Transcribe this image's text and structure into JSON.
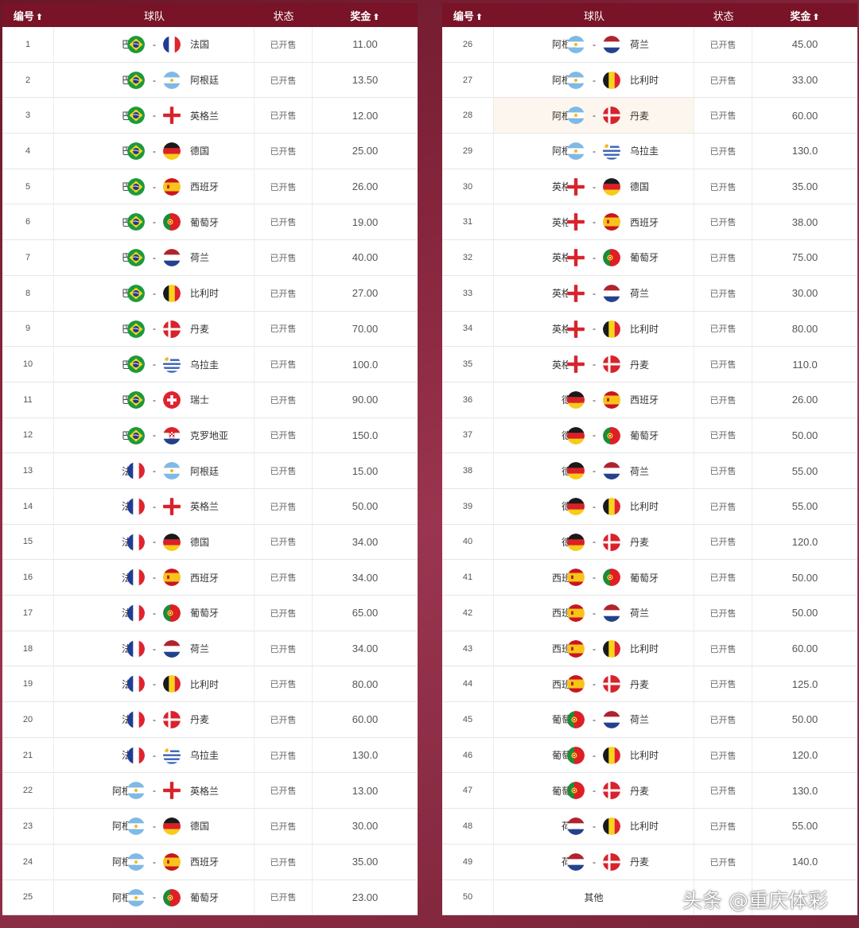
{
  "header": {
    "no": "编号",
    "team": "球队",
    "status": "状态",
    "prize": "奖金",
    "sort_icon": "⬆"
  },
  "watermark": "头条 @重庆体彩",
  "rows": [
    {
      "no": "1",
      "a": "巴西",
      "fa": "brazil",
      "b": "法国",
      "fb": "france",
      "status": "已开售",
      "prize": "11.00"
    },
    {
      "no": "2",
      "a": "巴西",
      "fa": "brazil",
      "b": "阿根廷",
      "fb": "argentina",
      "status": "已开售",
      "prize": "13.50"
    },
    {
      "no": "3",
      "a": "巴西",
      "fa": "brazil",
      "b": "英格兰",
      "fb": "england",
      "status": "已开售",
      "prize": "12.00"
    },
    {
      "no": "4",
      "a": "巴西",
      "fa": "brazil",
      "b": "德国",
      "fb": "germany",
      "status": "已开售",
      "prize": "25.00"
    },
    {
      "no": "5",
      "a": "巴西",
      "fa": "brazil",
      "b": "西班牙",
      "fb": "spain",
      "status": "已开售",
      "prize": "26.00"
    },
    {
      "no": "6",
      "a": "巴西",
      "fa": "brazil",
      "b": "葡萄牙",
      "fb": "portugal",
      "status": "已开售",
      "prize": "19.00"
    },
    {
      "no": "7",
      "a": "巴西",
      "fa": "brazil",
      "b": "荷兰",
      "fb": "netherlands",
      "status": "已开售",
      "prize": "40.00"
    },
    {
      "no": "8",
      "a": "巴西",
      "fa": "brazil",
      "b": "比利时",
      "fb": "belgium",
      "status": "已开售",
      "prize": "27.00"
    },
    {
      "no": "9",
      "a": "巴西",
      "fa": "brazil",
      "b": "丹麦",
      "fb": "denmark",
      "status": "已开售",
      "prize": "70.00"
    },
    {
      "no": "10",
      "a": "巴西",
      "fa": "brazil",
      "b": "乌拉圭",
      "fb": "uruguay",
      "status": "已开售",
      "prize": "100.0"
    },
    {
      "no": "11",
      "a": "巴西",
      "fa": "brazil",
      "b": "瑞士",
      "fb": "switzerland",
      "status": "已开售",
      "prize": "90.00"
    },
    {
      "no": "12",
      "a": "巴西",
      "fa": "brazil",
      "b": "克罗地亚",
      "fb": "croatia",
      "status": "已开售",
      "prize": "150.0"
    },
    {
      "no": "13",
      "a": "法国",
      "fa": "france",
      "b": "阿根廷",
      "fb": "argentina",
      "status": "已开售",
      "prize": "15.00"
    },
    {
      "no": "14",
      "a": "法国",
      "fa": "france",
      "b": "英格兰",
      "fb": "england",
      "status": "已开售",
      "prize": "50.00"
    },
    {
      "no": "15",
      "a": "法国",
      "fa": "france",
      "b": "德国",
      "fb": "germany",
      "status": "已开售",
      "prize": "34.00"
    },
    {
      "no": "16",
      "a": "法国",
      "fa": "france",
      "b": "西班牙",
      "fb": "spain",
      "status": "已开售",
      "prize": "34.00"
    },
    {
      "no": "17",
      "a": "法国",
      "fa": "france",
      "b": "葡萄牙",
      "fb": "portugal",
      "status": "已开售",
      "prize": "65.00"
    },
    {
      "no": "18",
      "a": "法国",
      "fa": "france",
      "b": "荷兰",
      "fb": "netherlands",
      "status": "已开售",
      "prize": "34.00"
    },
    {
      "no": "19",
      "a": "法国",
      "fa": "france",
      "b": "比利时",
      "fb": "belgium",
      "status": "已开售",
      "prize": "80.00"
    },
    {
      "no": "20",
      "a": "法国",
      "fa": "france",
      "b": "丹麦",
      "fb": "denmark",
      "status": "已开售",
      "prize": "60.00"
    },
    {
      "no": "21",
      "a": "法国",
      "fa": "france",
      "b": "乌拉圭",
      "fb": "uruguay",
      "status": "已开售",
      "prize": "130.0"
    },
    {
      "no": "22",
      "a": "阿根廷",
      "fa": "argentina",
      "b": "英格兰",
      "fb": "england",
      "status": "已开售",
      "prize": "13.00"
    },
    {
      "no": "23",
      "a": "阿根廷",
      "fa": "argentina",
      "b": "德国",
      "fb": "germany",
      "status": "已开售",
      "prize": "30.00"
    },
    {
      "no": "24",
      "a": "阿根廷",
      "fa": "argentina",
      "b": "西班牙",
      "fb": "spain",
      "status": "已开售",
      "prize": "35.00"
    },
    {
      "no": "25",
      "a": "阿根廷",
      "fa": "argentina",
      "b": "葡萄牙",
      "fb": "portugal",
      "status": "已开售",
      "prize": "23.00"
    },
    {
      "no": "26",
      "a": "阿根廷",
      "fa": "argentina",
      "b": "荷兰",
      "fb": "netherlands",
      "status": "已开售",
      "prize": "45.00"
    },
    {
      "no": "27",
      "a": "阿根廷",
      "fa": "argentina",
      "b": "比利时",
      "fb": "belgium",
      "status": "已开售",
      "prize": "33.00"
    },
    {
      "no": "28",
      "a": "阿根廷",
      "fa": "argentina",
      "b": "丹麦",
      "fb": "denmark",
      "status": "已开售",
      "prize": "60.00",
      "highlight": true
    },
    {
      "no": "29",
      "a": "阿根廷",
      "fa": "argentina",
      "b": "乌拉圭",
      "fb": "uruguay",
      "status": "已开售",
      "prize": "130.0"
    },
    {
      "no": "30",
      "a": "英格兰",
      "fa": "england",
      "b": "德国",
      "fb": "germany",
      "status": "已开售",
      "prize": "35.00"
    },
    {
      "no": "31",
      "a": "英格兰",
      "fa": "england",
      "b": "西班牙",
      "fb": "spain",
      "status": "已开售",
      "prize": "38.00"
    },
    {
      "no": "32",
      "a": "英格兰",
      "fa": "england",
      "b": "葡萄牙",
      "fb": "portugal",
      "status": "已开售",
      "prize": "75.00"
    },
    {
      "no": "33",
      "a": "英格兰",
      "fa": "england",
      "b": "荷兰",
      "fb": "netherlands",
      "status": "已开售",
      "prize": "30.00"
    },
    {
      "no": "34",
      "a": "英格兰",
      "fa": "england",
      "b": "比利时",
      "fb": "belgium",
      "status": "已开售",
      "prize": "80.00"
    },
    {
      "no": "35",
      "a": "英格兰",
      "fa": "england",
      "b": "丹麦",
      "fb": "denmark",
      "status": "已开售",
      "prize": "110.0"
    },
    {
      "no": "36",
      "a": "德国",
      "fa": "germany",
      "b": "西班牙",
      "fb": "spain",
      "status": "已开售",
      "prize": "26.00"
    },
    {
      "no": "37",
      "a": "德国",
      "fa": "germany",
      "b": "葡萄牙",
      "fb": "portugal",
      "status": "已开售",
      "prize": "50.00"
    },
    {
      "no": "38",
      "a": "德国",
      "fa": "germany",
      "b": "荷兰",
      "fb": "netherlands",
      "status": "已开售",
      "prize": "55.00"
    },
    {
      "no": "39",
      "a": "德国",
      "fa": "germany",
      "b": "比利时",
      "fb": "belgium",
      "status": "已开售",
      "prize": "55.00"
    },
    {
      "no": "40",
      "a": "德国",
      "fa": "germany",
      "b": "丹麦",
      "fb": "denmark",
      "status": "已开售",
      "prize": "120.0"
    },
    {
      "no": "41",
      "a": "西班牙",
      "fa": "spain",
      "b": "葡萄牙",
      "fb": "portugal",
      "status": "已开售",
      "prize": "50.00"
    },
    {
      "no": "42",
      "a": "西班牙",
      "fa": "spain",
      "b": "荷兰",
      "fb": "netherlands",
      "status": "已开售",
      "prize": "50.00"
    },
    {
      "no": "43",
      "a": "西班牙",
      "fa": "spain",
      "b": "比利时",
      "fb": "belgium",
      "status": "已开售",
      "prize": "60.00"
    },
    {
      "no": "44",
      "a": "西班牙",
      "fa": "spain",
      "b": "丹麦",
      "fb": "denmark",
      "status": "已开售",
      "prize": "125.0"
    },
    {
      "no": "45",
      "a": "葡萄牙",
      "fa": "portugal",
      "b": "荷兰",
      "fb": "netherlands",
      "status": "已开售",
      "prize": "50.00"
    },
    {
      "no": "46",
      "a": "葡萄牙",
      "fa": "portugal",
      "b": "比利时",
      "fb": "belgium",
      "status": "已开售",
      "prize": "120.0"
    },
    {
      "no": "47",
      "a": "葡萄牙",
      "fa": "portugal",
      "b": "丹麦",
      "fb": "denmark",
      "status": "已开售",
      "prize": "130.0"
    },
    {
      "no": "48",
      "a": "荷兰",
      "fa": "netherlands",
      "b": "比利时",
      "fb": "belgium",
      "status": "已开售",
      "prize": "55.00"
    },
    {
      "no": "49",
      "a": "荷兰",
      "fa": "netherlands",
      "b": "丹麦",
      "fb": "denmark",
      "status": "已开售",
      "prize": "140.0"
    },
    {
      "no": "50",
      "other": "其他",
      "status": "",
      "prize": ""
    }
  ]
}
